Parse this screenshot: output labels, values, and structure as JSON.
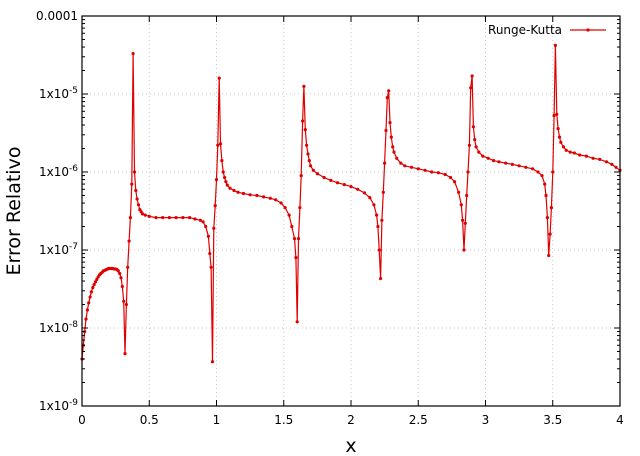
{
  "chart_data": {
    "type": "line",
    "xlabel": "x",
    "ylabel": "Error Relativo",
    "xlim": [
      0,
      4
    ],
    "ylim": [
      1e-09,
      0.0001
    ],
    "yscale": "log",
    "grid": true,
    "legend_position": "top-right",
    "x_ticks": [
      {
        "v": 0,
        "label": "0"
      },
      {
        "v": 0.5,
        "label": "0.5"
      },
      {
        "v": 1,
        "label": "1"
      },
      {
        "v": 1.5,
        "label": "1.5"
      },
      {
        "v": 2,
        "label": "2"
      },
      {
        "v": 2.5,
        "label": "2.5"
      },
      {
        "v": 3,
        "label": "3"
      },
      {
        "v": 3.5,
        "label": "3.5"
      },
      {
        "v": 4,
        "label": "4"
      }
    ],
    "y_ticks": [
      {
        "v": 1e-09,
        "base": "1x10",
        "exp": "-9"
      },
      {
        "v": 1e-08,
        "base": "1x10",
        "exp": "-8"
      },
      {
        "v": 1e-07,
        "base": "1x10",
        "exp": "-7"
      },
      {
        "v": 1e-06,
        "base": "1x10",
        "exp": "-6"
      },
      {
        "v": 1e-05,
        "base": "1x10",
        "exp": "-5"
      },
      {
        "v": 0.0001,
        "base": "0.0001",
        "exp": ""
      }
    ],
    "series": [
      {
        "name": "Runge-Kutta",
        "color": "#e00000",
        "points": [
          [
            0.0,
            4e-09
          ],
          [
            0.01,
            6e-09
          ],
          [
            0.02,
            9e-09
          ],
          [
            0.03,
            1.3e-08
          ],
          [
            0.04,
            1.7e-08
          ],
          [
            0.05,
            2.1e-08
          ],
          [
            0.06,
            2.5e-08
          ],
          [
            0.07,
            2.9e-08
          ],
          [
            0.08,
            3.3e-08
          ],
          [
            0.09,
            3.6e-08
          ],
          [
            0.1,
            3.9e-08
          ],
          [
            0.11,
            4.2e-08
          ],
          [
            0.12,
            4.5e-08
          ],
          [
            0.13,
            4.8e-08
          ],
          [
            0.14,
            5e-08
          ],
          [
            0.15,
            5.2e-08
          ],
          [
            0.16,
            5.4e-08
          ],
          [
            0.17,
            5.5e-08
          ],
          [
            0.18,
            5.6e-08
          ],
          [
            0.19,
            5.7e-08
          ],
          [
            0.2,
            5.8e-08
          ],
          [
            0.21,
            5.8e-08
          ],
          [
            0.22,
            5.8e-08
          ],
          [
            0.23,
            5.8e-08
          ],
          [
            0.24,
            5.7e-08
          ],
          [
            0.25,
            5.7e-08
          ],
          [
            0.26,
            5.6e-08
          ],
          [
            0.27,
            5.4e-08
          ],
          [
            0.28,
            5e-08
          ],
          [
            0.29,
            4.4e-08
          ],
          [
            0.3,
            3.4e-08
          ],
          [
            0.31,
            2.2e-08
          ],
          [
            0.32,
            4.7e-09
          ],
          [
            0.33,
            2e-08
          ],
          [
            0.34,
            6e-08
          ],
          [
            0.35,
            1.3e-07
          ],
          [
            0.36,
            2.6e-07
          ],
          [
            0.37,
            7e-07
          ],
          [
            0.38,
            3.3e-05
          ],
          [
            0.39,
            1e-06
          ],
          [
            0.4,
            5.8e-07
          ],
          [
            0.41,
            4.5e-07
          ],
          [
            0.42,
            3.8e-07
          ],
          [
            0.43,
            3.3e-07
          ],
          [
            0.44,
            3.1e-07
          ],
          [
            0.45,
            2.9e-07
          ],
          [
            0.47,
            2.8e-07
          ],
          [
            0.5,
            2.7e-07
          ],
          [
            0.55,
            2.6e-07
          ],
          [
            0.6,
            2.6e-07
          ],
          [
            0.65,
            2.6e-07
          ],
          [
            0.7,
            2.6e-07
          ],
          [
            0.75,
            2.6e-07
          ],
          [
            0.8,
            2.6e-07
          ],
          [
            0.84,
            2.5e-07
          ],
          [
            0.88,
            2.4e-07
          ],
          [
            0.9,
            2.3e-07
          ],
          [
            0.92,
            2e-07
          ],
          [
            0.94,
            1.5e-07
          ],
          [
            0.95,
            9e-08
          ],
          [
            0.96,
            6e-08
          ],
          [
            0.97,
            3.7e-09
          ],
          [
            0.98,
            1.9e-07
          ],
          [
            0.99,
            3.7e-07
          ],
          [
            1.0,
            8e-07
          ],
          [
            1.01,
            2.2e-06
          ],
          [
            1.02,
            1.6e-05
          ],
          [
            1.03,
            2.3e-06
          ],
          [
            1.04,
            1.4e-06
          ],
          [
            1.05,
            1e-06
          ],
          [
            1.06,
            8.5e-07
          ],
          [
            1.07,
            7.5e-07
          ],
          [
            1.08,
            6.8e-07
          ],
          [
            1.1,
            6.2e-07
          ],
          [
            1.13,
            5.8e-07
          ],
          [
            1.16,
            5.5e-07
          ],
          [
            1.2,
            5.3e-07
          ],
          [
            1.25,
            5.1e-07
          ],
          [
            1.3,
            5e-07
          ],
          [
            1.35,
            4.8e-07
          ],
          [
            1.4,
            4.6e-07
          ],
          [
            1.44,
            4.4e-07
          ],
          [
            1.48,
            4e-07
          ],
          [
            1.51,
            3.5e-07
          ],
          [
            1.54,
            2.8e-07
          ],
          [
            1.56,
            2e-07
          ],
          [
            1.58,
            1.4e-07
          ],
          [
            1.59,
            8e-08
          ],
          [
            1.6,
            1.2e-08
          ],
          [
            1.61,
            1.4e-07
          ],
          [
            1.62,
            3.5e-07
          ],
          [
            1.63,
            9e-07
          ],
          [
            1.64,
            4.5e-06
          ],
          [
            1.65,
            1.25e-05
          ],
          [
            1.66,
            3.5e-06
          ],
          [
            1.67,
            2.2e-06
          ],
          [
            1.68,
            1.7e-06
          ],
          [
            1.69,
            1.4e-06
          ],
          [
            1.7,
            1.2e-06
          ],
          [
            1.72,
            1.05e-06
          ],
          [
            1.75,
            9.5e-07
          ],
          [
            1.8,
            8.5e-07
          ],
          [
            1.85,
            7.8e-07
          ],
          [
            1.9,
            7.3e-07
          ],
          [
            1.95,
            6.9e-07
          ],
          [
            2.0,
            6.5e-07
          ],
          [
            2.05,
            6e-07
          ],
          [
            2.1,
            5.4e-07
          ],
          [
            2.14,
            4.7e-07
          ],
          [
            2.17,
            3.8e-07
          ],
          [
            2.19,
            2.8e-07
          ],
          [
            2.2,
            2e-07
          ],
          [
            2.21,
            1e-07
          ],
          [
            2.22,
            4.3e-08
          ],
          [
            2.23,
            2.4e-07
          ],
          [
            2.24,
            5.5e-07
          ],
          [
            2.25,
            1.3e-06
          ],
          [
            2.26,
            3.4e-06
          ],
          [
            2.27,
            9e-06
          ],
          [
            2.28,
            1.1e-05
          ],
          [
            2.29,
            4.3e-06
          ],
          [
            2.3,
            2.8e-06
          ],
          [
            2.31,
            2.1e-06
          ],
          [
            2.32,
            1.8e-06
          ],
          [
            2.34,
            1.5e-06
          ],
          [
            2.37,
            1.3e-06
          ],
          [
            2.4,
            1.2e-06
          ],
          [
            2.45,
            1.15e-06
          ],
          [
            2.5,
            1.1e-06
          ],
          [
            2.55,
            1.05e-06
          ],
          [
            2.6,
            1e-06
          ],
          [
            2.65,
            9.8e-07
          ],
          [
            2.7,
            9.3e-07
          ],
          [
            2.74,
            8.5e-07
          ],
          [
            2.77,
            7.5e-07
          ],
          [
            2.8,
            5.5e-07
          ],
          [
            2.82,
            3.8e-07
          ],
          [
            2.83,
            2.4e-07
          ],
          [
            2.84,
            1e-07
          ],
          [
            2.85,
            2.2e-07
          ],
          [
            2.86,
            5e-07
          ],
          [
            2.87,
            1e-06
          ],
          [
            2.88,
            2.2e-06
          ],
          [
            2.89,
            1.2e-05
          ],
          [
            2.9,
            1.7e-05
          ],
          [
            2.91,
            3.8e-06
          ],
          [
            2.92,
            2.6e-06
          ],
          [
            2.93,
            2.1e-06
          ],
          [
            2.95,
            1.8e-06
          ],
          [
            2.98,
            1.6e-06
          ],
          [
            3.02,
            1.5e-06
          ],
          [
            3.06,
            1.4e-06
          ],
          [
            3.1,
            1.35e-06
          ],
          [
            3.15,
            1.3e-06
          ],
          [
            3.2,
            1.25e-06
          ],
          [
            3.25,
            1.2e-06
          ],
          [
            3.3,
            1.15e-06
          ],
          [
            3.35,
            1.1e-06
          ],
          [
            3.39,
            1e-06
          ],
          [
            3.42,
            9e-07
          ],
          [
            3.44,
            7e-07
          ],
          [
            3.45,
            5e-07
          ],
          [
            3.46,
            2.6e-07
          ],
          [
            3.47,
            8.5e-08
          ],
          [
            3.48,
            1.6e-07
          ],
          [
            3.49,
            3.5e-07
          ],
          [
            3.5,
            1e-06
          ],
          [
            3.51,
            5.3e-06
          ],
          [
            3.52,
            4.2e-05
          ],
          [
            3.53,
            5.5e-06
          ],
          [
            3.54,
            3.6e-06
          ],
          [
            3.55,
            2.8e-06
          ],
          [
            3.56,
            2.4e-06
          ],
          [
            3.58,
            2.1e-06
          ],
          [
            3.6,
            1.9e-06
          ],
          [
            3.63,
            1.8e-06
          ],
          [
            3.66,
            1.75e-06
          ],
          [
            3.7,
            1.65e-06
          ],
          [
            3.75,
            1.6e-06
          ],
          [
            3.8,
            1.5e-06
          ],
          [
            3.85,
            1.45e-06
          ],
          [
            3.9,
            1.35e-06
          ],
          [
            3.94,
            1.25e-06
          ],
          [
            3.97,
            1.15e-06
          ],
          [
            4.0,
            1.05e-06
          ]
        ]
      }
    ]
  }
}
